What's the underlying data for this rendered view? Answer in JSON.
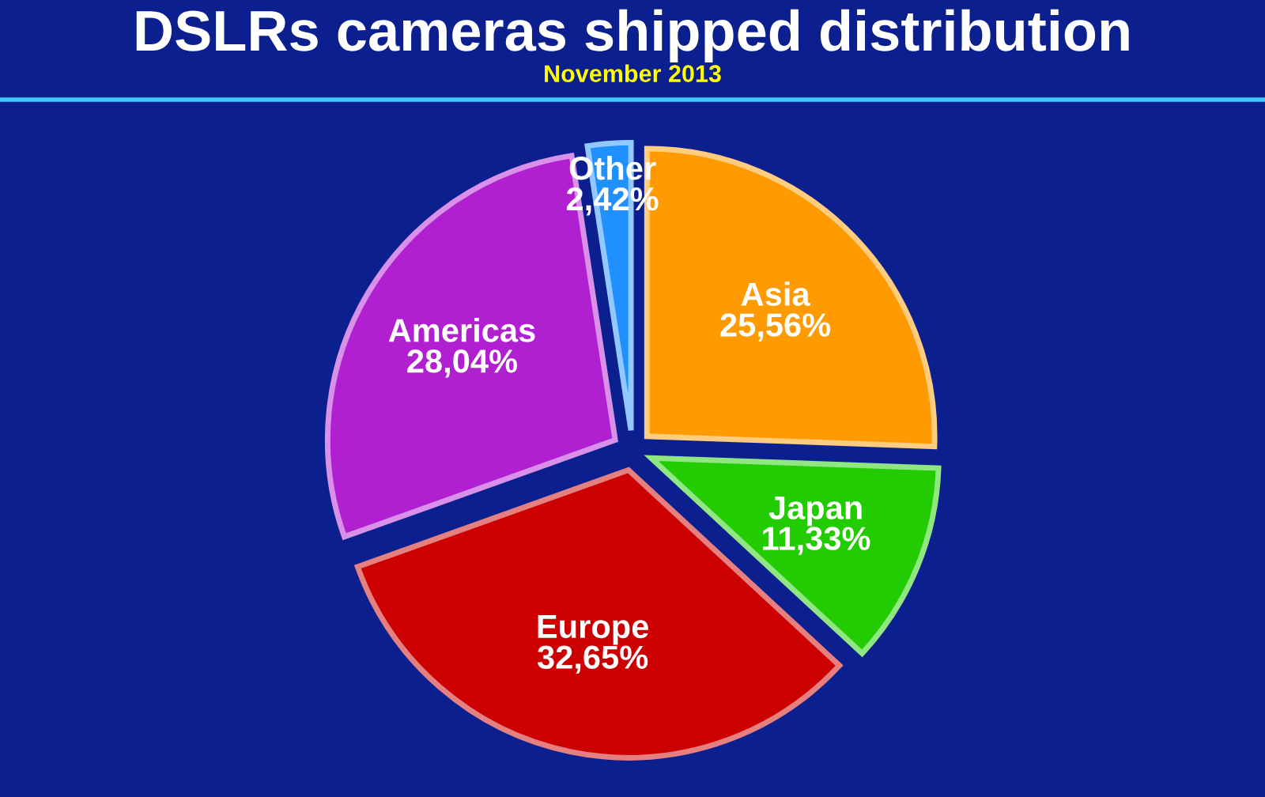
{
  "chart_data": {
    "type": "pie",
    "title": "DSLRs cameras shipped distribution",
    "subtitle": "November 2013",
    "categories": [
      "Asia",
      "Japan",
      "Europe",
      "Americas",
      "Other"
    ],
    "values": [
      25.56,
      11.33,
      32.65,
      28.04,
      2.42
    ],
    "value_labels": [
      "25,56%",
      "11,33%",
      "32,65%",
      "28,04%",
      "2,42%"
    ],
    "colors": [
      "#ff9a00",
      "#22cc00",
      "#cc0000",
      "#b020d0",
      "#2090ff"
    ],
    "legend": false
  }
}
